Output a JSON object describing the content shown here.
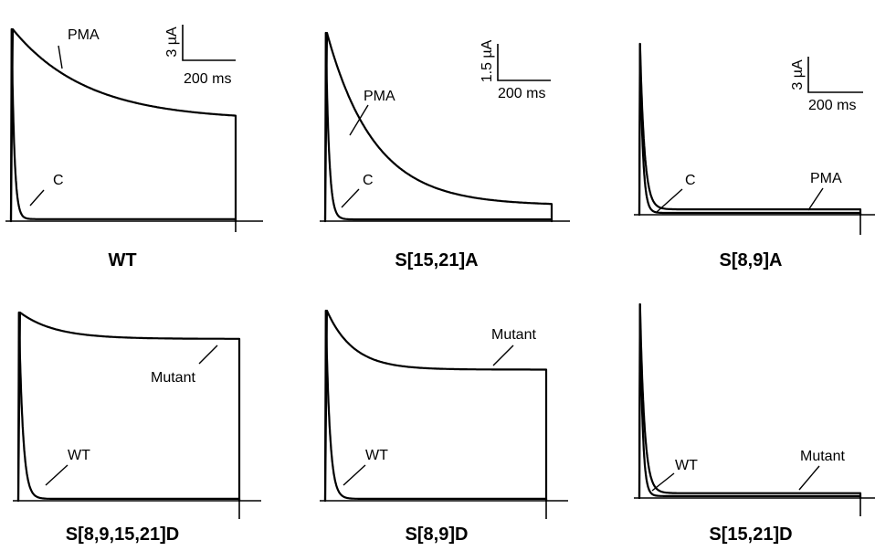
{
  "chart_data": [
    {
      "type": "line",
      "title": "WT",
      "scale_bar": {
        "y": "3 µA",
        "x": "200 ms"
      },
      "series": [
        {
          "name": "PMA",
          "kind": "slow",
          "peak": 9.5,
          "steady": 5.0,
          "tau_ms": 330,
          "duration_ms": 1000
        },
        {
          "name": "C",
          "kind": "fast",
          "peak": 9.5,
          "steady": 0.1,
          "tau_ms": 12,
          "duration_ms": 1000
        }
      ]
    },
    {
      "type": "line",
      "title": "S[15,21]A",
      "scale_bar": {
        "y": "1.5 µA",
        "x": "200 ms"
      },
      "series": [
        {
          "name": "PMA",
          "kind": "slow",
          "peak": 5.4,
          "steady": 0.45,
          "tau_ms": 210,
          "duration_ms": 1000
        },
        {
          "name": "C",
          "kind": "fast",
          "peak": 5.4,
          "steady": 0.05,
          "tau_ms": 14,
          "duration_ms": 1000
        }
      ]
    },
    {
      "type": "line",
      "title": "S[8,9]A",
      "scale_bar": {
        "y": "3 µA",
        "x": "200 ms"
      },
      "series": [
        {
          "name": "C",
          "kind": "fast",
          "peak": 9.5,
          "steady": 0.1,
          "tau_ms": 13,
          "duration_ms": 1000
        },
        {
          "name": "PMA",
          "kind": "fast",
          "peak": 9.5,
          "steady": 0.3,
          "tau_ms": 20,
          "duration_ms": 1000
        }
      ]
    },
    {
      "type": "line",
      "title": "S[8,9,15,21]D",
      "series": [
        {
          "name": "Mutant",
          "kind": "slow",
          "peak": 1.0,
          "steady": 0.86,
          "tau_ms": 160,
          "duration_ms": 1000
        },
        {
          "name": "WT",
          "kind": "fast",
          "peak": 1.0,
          "steady": 0.01,
          "tau_ms": 18,
          "duration_ms": 1000
        }
      ]
    },
    {
      "type": "line",
      "title": "S[8,9]D",
      "series": [
        {
          "name": "Mutant",
          "kind": "slow",
          "peak": 1.0,
          "steady": 0.69,
          "tau_ms": 120,
          "duration_ms": 1000
        },
        {
          "name": "WT",
          "kind": "fast",
          "peak": 1.0,
          "steady": 0.01,
          "tau_ms": 18,
          "duration_ms": 1000
        }
      ]
    },
    {
      "type": "line",
      "title": "S[15,21]D",
      "series": [
        {
          "name": "WT",
          "kind": "fast",
          "peak": 1.0,
          "steady": 0.01,
          "tau_ms": 12,
          "duration_ms": 1000
        },
        {
          "name": "Mutant",
          "kind": "fast",
          "peak": 1.0,
          "steady": 0.025,
          "tau_ms": 20,
          "duration_ms": 1000
        }
      ]
    }
  ]
}
